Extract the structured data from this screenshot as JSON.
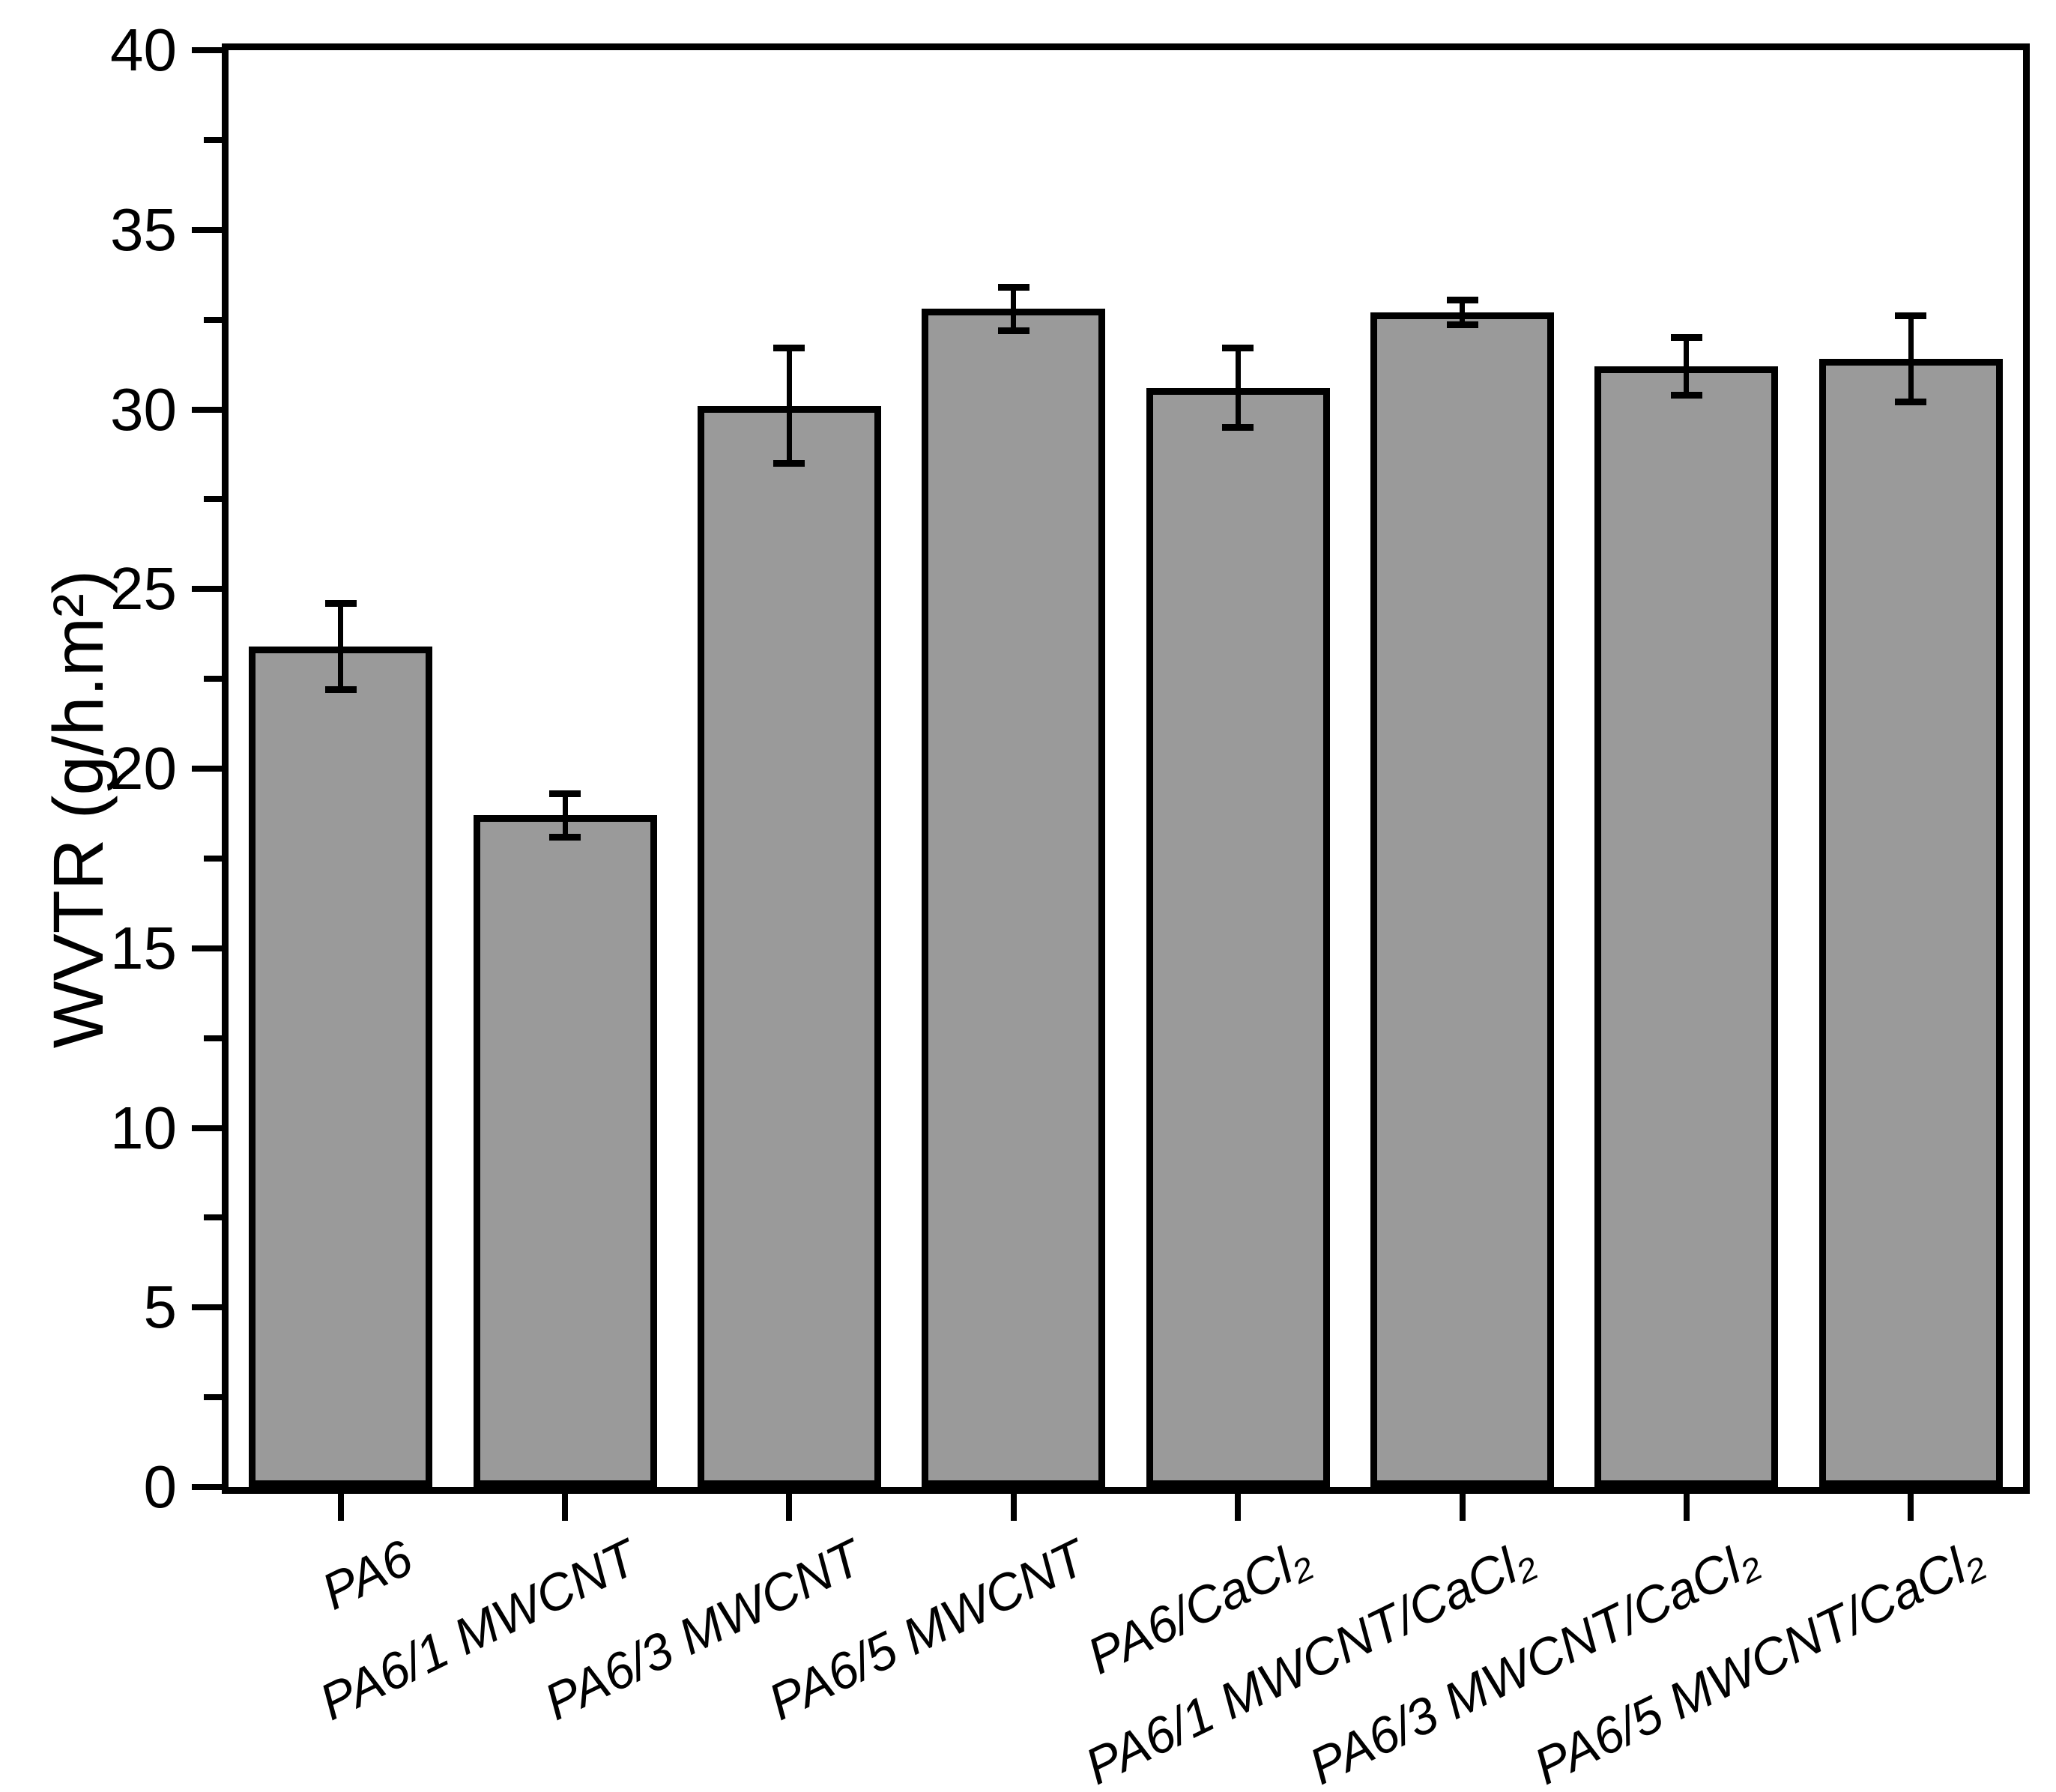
{
  "figure": {
    "background": "#ffffff"
  },
  "chart_data": {
    "type": "bar",
    "title": "",
    "xlabel": "",
    "ylabel": "WVTR (g/h.m²)",
    "categories": [
      "PA6",
      "PA6/1 MWCNT",
      "PA6/3 MWCNT",
      "PA6/5 MWCNT",
      "PA6/CaCl₂",
      "PA6/1 MWCNT/CaCl₂",
      "PA6/3 MWCNT/CaCl₂",
      "PA6/5 MWCNT/CaCl₂"
    ],
    "values": [
      23.4,
      18.7,
      30.1,
      32.8,
      30.6,
      32.7,
      31.2,
      31.4
    ],
    "error_bars": [
      1.2,
      0.6,
      1.6,
      0.6,
      1.1,
      0.35,
      0.8,
      1.2
    ],
    "ylim": [
      0,
      40
    ],
    "ytick_step": 5,
    "ytick_minor_step": 2.5,
    "ytick_labels": [
      "0",
      "5",
      "10",
      "15",
      "20",
      "25",
      "30",
      "35",
      "40"
    ],
    "grid": false,
    "legend": "none",
    "bar_fill_color": "#9a9a9a",
    "bar_edge_color": "#000000",
    "axis_color": "#000000",
    "error_bar_color": "#000000",
    "x_label_style": "italic",
    "x_label_rotation_deg": -26
  }
}
